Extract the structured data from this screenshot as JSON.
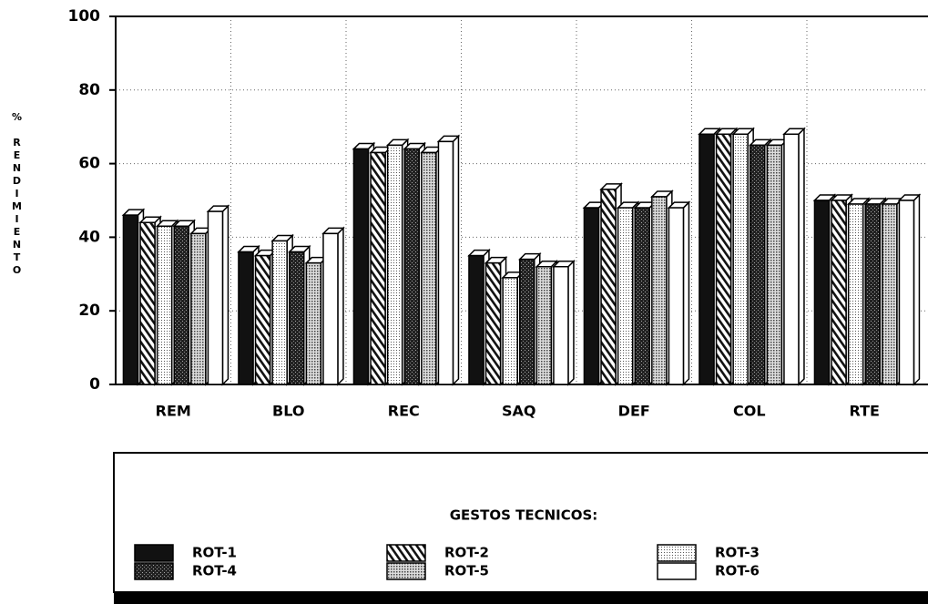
{
  "chart_data": {
    "type": "bar3d",
    "y_label": "% RENDIMIENTO",
    "legend_title": "GESTOS TECNICOS:",
    "categories": [
      "REM",
      "BLO",
      "REC",
      "SAQ",
      "DEF",
      "COL",
      "RTE"
    ],
    "series": [
      {
        "name": "ROT-1",
        "color": "#111111",
        "pattern": "solid",
        "values": [
          46,
          36,
          64,
          35,
          48,
          68,
          50
        ]
      },
      {
        "name": "ROT-2",
        "color": "#111111",
        "pattern": "hatch",
        "values": [
          44,
          35,
          63,
          33,
          53,
          68,
          50
        ]
      },
      {
        "name": "ROT-3",
        "color": "#bbbbbb",
        "pattern": "fine-dots",
        "values": [
          43,
          39,
          65,
          29,
          48,
          68,
          49
        ]
      },
      {
        "name": "ROT-4",
        "color": "#333333",
        "pattern": "crosshatch",
        "values": [
          43,
          36,
          64,
          34,
          48,
          65,
          49
        ]
      },
      {
        "name": "ROT-5",
        "color": "#888888",
        "pattern": "dots",
        "values": [
          41,
          33,
          63,
          32,
          51,
          65,
          49
        ]
      },
      {
        "name": "ROT-6",
        "color": "#ffffff",
        "pattern": "solid",
        "values": [
          47,
          41,
          66,
          32,
          48,
          68,
          50
        ]
      }
    ],
    "ylim": [
      0,
      100
    ],
    "yticks": [
      0,
      20,
      40,
      60,
      80,
      100
    ],
    "grid": true
  }
}
